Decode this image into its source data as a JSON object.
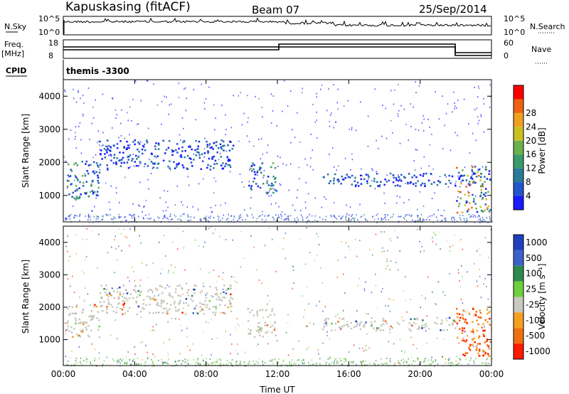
{
  "header": {
    "station": "Kapuskasing (fitACF)",
    "beam": "Beam 07",
    "date": "25/Sep/2014"
  },
  "top_panels": {
    "nsky_label": "N.Sky",
    "nsky_ticks": [
      "10^5",
      "10^0"
    ],
    "nsearch_label": "N.Search",
    "nsearch_ticks": [
      "10^5",
      "10^0"
    ],
    "freq_label": "Freq.",
    "freq_unit": "[MHz]",
    "freq_ticks": [
      "18",
      "8"
    ],
    "nave_label": "Nave",
    "nave_ticks": [
      "60",
      "0"
    ],
    "cpid_label": "CPID",
    "cpid_value": "themis -3300"
  },
  "chart_data": [
    {
      "type": "heatmap",
      "ylabel": "Slant Range [km]",
      "ylim": [
        200,
        4500
      ],
      "yticks": [
        "1000",
        "2000",
        "3000",
        "4000"
      ],
      "ytick_values": [
        1000,
        2000,
        3000,
        4000
      ],
      "xticks": [
        "00:00",
        "04:00",
        "08:00",
        "12:00",
        "16:00",
        "20:00",
        "00:00"
      ],
      "xlim_hours": [
        0,
        24
      ],
      "colorbar": {
        "label": "Power [dB]",
        "ticks": [
          "4",
          "8",
          "12",
          "16",
          "20",
          "24",
          "28"
        ],
        "colors": [
          "#1a1aff",
          "#2255cc",
          "#2a7a9a",
          "#3a9a6a",
          "#6ab04c",
          "#c8c020",
          "#f0a020",
          "#f06010",
          "#ff0000"
        ]
      },
      "features": [
        {
          "t0": 0.1,
          "t1": 2.0,
          "r0": 900,
          "r1": 2100,
          "level": "high"
        },
        {
          "t0": 2.0,
          "t1": 9.5,
          "r0": 1800,
          "r1": 2700,
          "level": "medium"
        },
        {
          "t0": 10.3,
          "t1": 11.9,
          "r0": 1100,
          "r1": 2000,
          "level": "high"
        },
        {
          "t0": 14.5,
          "t1": 23.9,
          "r0": 1300,
          "r1": 1700,
          "level": "medium"
        },
        {
          "t0": 22.0,
          "t1": 23.9,
          "r0": 500,
          "r1": 1900,
          "level": "very-high"
        }
      ]
    },
    {
      "type": "heatmap",
      "ylabel": "Slant Range [km]",
      "ylim": [
        200,
        4500
      ],
      "yticks": [
        "1000",
        "2000",
        "3000",
        "4000"
      ],
      "ytick_values": [
        1000,
        2000,
        3000,
        4000
      ],
      "xticks": [
        "00:00",
        "04:00",
        "08:00",
        "12:00",
        "16:00",
        "20:00",
        "00:00"
      ],
      "xlim_hours": [
        0,
        24
      ],
      "xlabel": "Time UT",
      "colorbar": {
        "label": "Velocity [m s⁻¹]",
        "ticks": [
          "1000",
          "500",
          "100",
          "25",
          "-25",
          "-100",
          "-500",
          "-1000"
        ],
        "colors": [
          "#1f3fbf",
          "#3a62c8",
          "#2e8a4e",
          "#6fcf3c",
          "#c8c8c0",
          "#f5a020",
          "#f07010",
          "#ff1a00"
        ]
      },
      "features": [
        {
          "t0": 0.1,
          "t1": 2.0,
          "r0": 1100,
          "r1": 2100,
          "level": "ground"
        },
        {
          "t0": 2.0,
          "t1": 9.5,
          "r0": 1800,
          "r1": 2700,
          "level": "ground"
        },
        {
          "t0": 10.3,
          "t1": 11.9,
          "r0": 1100,
          "r1": 2000,
          "level": "ground"
        },
        {
          "t0": 14.5,
          "t1": 22.0,
          "r0": 1300,
          "r1": 1700,
          "level": "ground"
        },
        {
          "t0": 22.0,
          "t1": 23.9,
          "r0": 500,
          "r1": 2000,
          "level": "negative"
        }
      ]
    }
  ]
}
